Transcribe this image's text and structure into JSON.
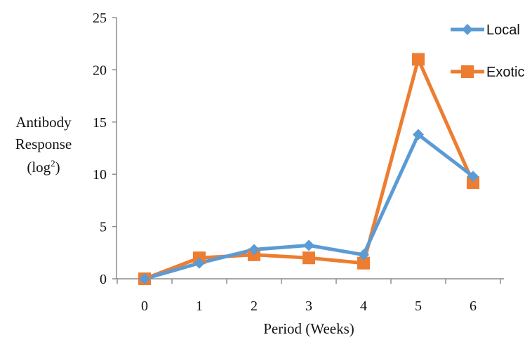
{
  "chart_data": {
    "type": "line",
    "x": [
      0,
      1,
      2,
      3,
      4,
      5,
      6
    ],
    "series": [
      {
        "name": "Local",
        "values": [
          0,
          1.5,
          2.8,
          3.2,
          2.3,
          13.8,
          9.8
        ],
        "color": "#5b9bd5",
        "marker": "diamond"
      },
      {
        "name": "Exotic",
        "values": [
          0,
          2.0,
          2.3,
          2.0,
          1.5,
          21.0,
          9.2
        ],
        "color": "#ed7d31",
        "marker": "square"
      }
    ],
    "xlabel": "Period (Weeks)",
    "ylabel_lines": [
      "Antibody",
      "Response"
    ],
    "ylabel_unit": {
      "base": "(log",
      "sup": "2",
      "close": ")"
    },
    "xlim": [
      0,
      6
    ],
    "ylim": [
      0,
      25
    ],
    "yticks": [
      0,
      5,
      10,
      15,
      20,
      25
    ],
    "grid": false,
    "legend_position": "top-right"
  }
}
